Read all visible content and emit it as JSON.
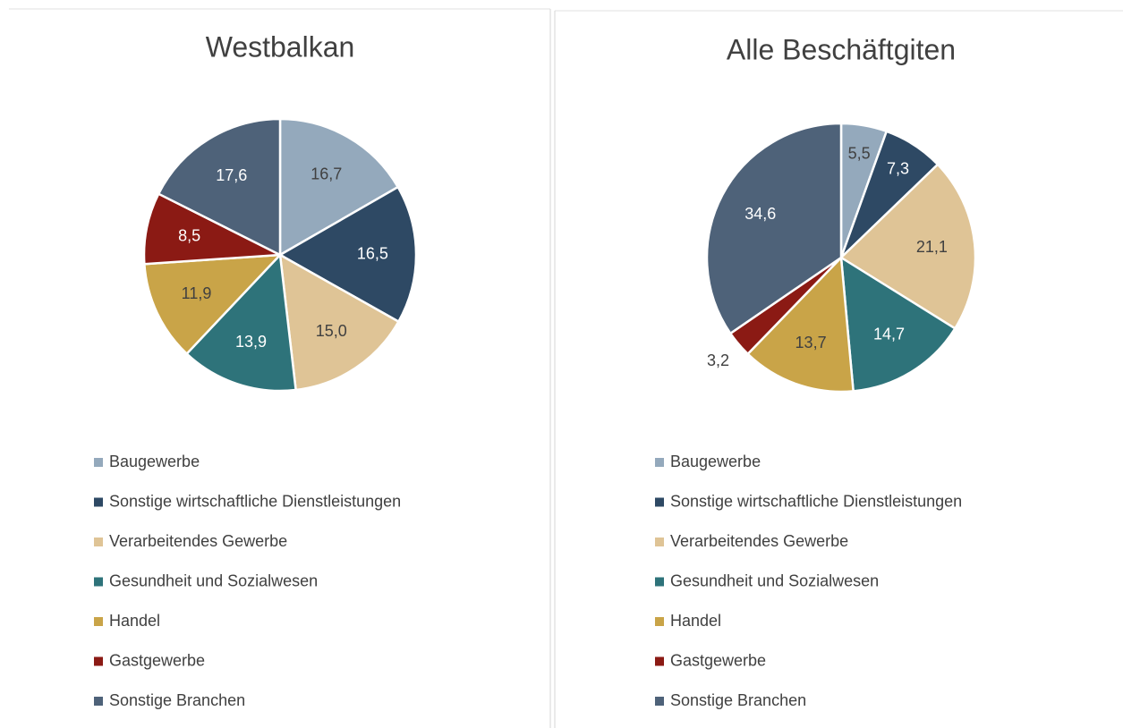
{
  "chart_data": [
    {
      "type": "pie",
      "title": "Westbalkan",
      "categories": [
        "Baugewerbe",
        "Sonstige wirtschaftliche Dienstleistungen",
        "Verarbeitendes Gewerbe",
        "Gesundheit und Sozialwesen",
        "Handel",
        "Gastgewerbe",
        "Sonstige Branchen"
      ],
      "values": [
        16.7,
        16.5,
        15.0,
        13.9,
        11.9,
        8.5,
        17.6
      ],
      "value_labels": [
        "16,7",
        "16,5",
        "15,0",
        "13,9",
        "11,9",
        "8,5",
        "17,6"
      ],
      "colors": [
        "#94a9bc",
        "#2e4964",
        "#dfc496",
        "#2e737a",
        "#c9a448",
        "#8b1a14",
        "#4e6279"
      ],
      "legend": "bottom"
    },
    {
      "type": "pie",
      "title": "Alle Beschäftgiten",
      "categories": [
        "Baugewerbe",
        "Sonstige wirtschaftliche Dienstleistungen",
        "Verarbeitendes Gewerbe",
        "Gesundheit und Sozialwesen",
        "Handel",
        "Gastgewerbe",
        "Sonstige Branchen"
      ],
      "values": [
        5.5,
        7.3,
        21.1,
        14.7,
        13.7,
        3.2,
        34.6
      ],
      "value_labels": [
        "5,5",
        "7,3",
        "21,1",
        "14,7",
        "13,7",
        "3,2",
        "34,6"
      ],
      "colors": [
        "#94a9bc",
        "#2e4964",
        "#dfc496",
        "#2e737a",
        "#c9a448",
        "#8b1a14",
        "#4e6279"
      ],
      "legend": "bottom"
    }
  ]
}
